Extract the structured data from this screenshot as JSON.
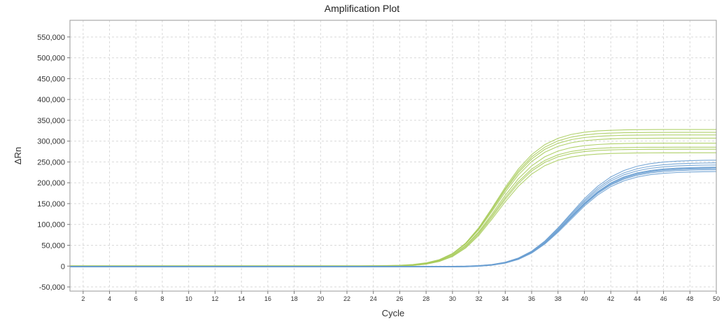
{
  "chart_data": {
    "type": "line",
    "title": "Amplification Plot",
    "xlabel": "Cycle",
    "ylabel": "ΔRn",
    "xlim": [
      1,
      50
    ],
    "ylim": [
      -60000,
      590000
    ],
    "x_ticks": [
      2,
      4,
      6,
      8,
      10,
      12,
      14,
      16,
      18,
      20,
      22,
      24,
      26,
      28,
      30,
      32,
      34,
      36,
      38,
      40,
      42,
      44,
      46,
      48,
      50
    ],
    "y_ticks": [
      -50000,
      0,
      50000,
      100000,
      150000,
      200000,
      250000,
      300000,
      350000,
      400000,
      450000,
      500000,
      550000
    ],
    "y_tick_labels": [
      "-50,000",
      "0",
      "50,000",
      "100,000",
      "150,000",
      "200,000",
      "250,000",
      "300,000",
      "350,000",
      "400,000",
      "450,000",
      "500,000",
      "550,000"
    ],
    "grid": true,
    "colors": {
      "green": "#a9cc5c",
      "blue": "#6a9fd2",
      "grid": "#d9d9d9",
      "frame": "#999999"
    },
    "x": [
      1,
      2,
      3,
      4,
      5,
      6,
      7,
      8,
      9,
      10,
      11,
      12,
      13,
      14,
      15,
      16,
      17,
      18,
      19,
      20,
      21,
      22,
      23,
      24,
      25,
      26,
      27,
      28,
      29,
      30,
      31,
      32,
      33,
      34,
      35,
      36,
      37,
      38,
      39,
      40,
      41,
      42,
      43,
      44,
      45,
      46,
      47,
      48,
      49,
      50
    ],
    "series": [
      {
        "group": "green",
        "values": [
          -1000,
          -1000,
          -1000,
          -1000,
          -1000,
          -1000,
          -1000,
          -1000,
          -1000,
          -1000,
          -1000,
          -1000,
          -1000,
          -1000,
          -1000,
          -1000,
          -1000,
          -1000,
          -1000,
          -1000,
          -1000,
          -1000,
          -1000,
          -900,
          -600,
          0,
          1500,
          4500,
          11000,
          23000,
          43500,
          73800,
          113000,
          154500,
          191700,
          220800,
          241200,
          254100,
          261900,
          266400,
          268900,
          270300,
          271100,
          271500,
          271800,
          271900,
          271900,
          272000,
          272000,
          272000
        ]
      },
      {
        "group": "green",
        "values": [
          -500,
          -500,
          -500,
          -500,
          -500,
          -500,
          -500,
          -500,
          -500,
          -500,
          -500,
          -500,
          -500,
          -500,
          -500,
          -500,
          -500,
          -500,
          -500,
          -500,
          -500,
          -500,
          -500,
          -400,
          -100,
          600,
          2100,
          5200,
          11900,
          24500,
          45700,
          77100,
          117500,
          160300,
          198400,
          228200,
          249000,
          262300,
          270300,
          274900,
          277500,
          278900,
          279700,
          280200,
          280400,
          280500,
          280600,
          280600,
          280600,
          280600
        ]
      },
      {
        "group": "green",
        "values": [
          0,
          0,
          0,
          0,
          0,
          0,
          0,
          0,
          0,
          0,
          0,
          0,
          0,
          0,
          0,
          0,
          0,
          0,
          0,
          0,
          0,
          0,
          0,
          100,
          400,
          1100,
          2700,
          6000,
          13000,
          26100,
          48100,
          80300,
          121200,
          164500,
          202900,
          232800,
          253800,
          267200,
          275200,
          279800,
          282400,
          283900,
          284600,
          285100,
          285300,
          285400,
          285500,
          285500,
          285500,
          285500
        ]
      },
      {
        "group": "green",
        "values": [
          0,
          0,
          0,
          0,
          0,
          0,
          0,
          0,
          0,
          0,
          0,
          0,
          0,
          0,
          0,
          0,
          0,
          0,
          0,
          0,
          0,
          0,
          0,
          100,
          400,
          1100,
          2800,
          6200,
          13400,
          27000,
          49700,
          83000,
          125300,
          170100,
          209800,
          240700,
          262400,
          276100,
          284400,
          289200,
          291900,
          293400,
          294200,
          294700,
          294900,
          295000,
          295100,
          295100,
          295100,
          295100
        ]
      },
      {
        "group": "green",
        "values": [
          500,
          500,
          500,
          500,
          500,
          500,
          500,
          500,
          500,
          500,
          500,
          500,
          500,
          500,
          500,
          500,
          500,
          500,
          500,
          500,
          500,
          500,
          500,
          600,
          900,
          1700,
          3500,
          7200,
          14800,
          29200,
          53100,
          87800,
          131600,
          177900,
          218900,
          250900,
          273400,
          287500,
          296100,
          301100,
          303800,
          305400,
          306300,
          306700,
          306900,
          307100,
          307100,
          307100,
          307100,
          307100
        ]
      },
      {
        "group": "green",
        "values": [
          1000,
          1000,
          1000,
          1000,
          1000,
          1000,
          1000,
          1000,
          1000,
          1000,
          1000,
          1000,
          1000,
          1000,
          1000,
          1000,
          1000,
          1000,
          1000,
          1000,
          1000,
          1000,
          1000,
          1100,
          1400,
          2200,
          4000,
          7800,
          15500,
          30200,
          54700,
          90200,
          135000,
          182500,
          224500,
          257300,
          280300,
          294800,
          303600,
          308700,
          311500,
          313100,
          314000,
          314400,
          314700,
          314800,
          314900,
          314900,
          314900,
          314900
        ]
      },
      {
        "group": "green",
        "values": [
          0,
          0,
          0,
          0,
          0,
          0,
          0,
          0,
          0,
          0,
          0,
          0,
          0,
          0,
          0,
          0,
          0,
          0,
          0,
          0,
          0,
          0,
          0,
          100,
          400,
          1200,
          3000,
          6800,
          14600,
          29500,
          54400,
          90800,
          136800,
          185500,
          228500,
          262100,
          285700,
          300600,
          309600,
          314800,
          317700,
          319300,
          320200,
          320600,
          320900,
          321000,
          321100,
          321100,
          321100,
          321100
        ]
      },
      {
        "group": "green",
        "values": [
          -500,
          -500,
          -500,
          -500,
          -500,
          -500,
          -500,
          -500,
          -500,
          -500,
          -500,
          -500,
          -500,
          -500,
          -500,
          -500,
          -500,
          -500,
          -500,
          -500,
          -500,
          -500,
          -500,
          -400,
          0,
          800,
          2600,
          6500,
          14500,
          29800,
          55300,
          92500,
          139500,
          189200,
          233200,
          267600,
          291700,
          306900,
          316100,
          321500,
          324400,
          326000,
          326900,
          327400,
          327600,
          327800,
          327800,
          327800,
          327800,
          327800
        ]
      },
      {
        "group": "blue",
        "values": [
          -2000,
          -2000,
          -2000,
          -2000,
          -2000,
          -2000,
          -2000,
          -2000,
          -2000,
          -2000,
          -2000,
          -2000,
          -2000,
          -2000,
          -2000,
          -2000,
          -2000,
          -2000,
          -2000,
          -2000,
          -2000,
          -2000,
          -2000,
          -2000,
          -2000,
          -2000,
          -2000,
          -2000,
          -2000,
          -1900,
          -1500,
          -400,
          2200,
          7400,
          16900,
          32500,
          55400,
          84700,
          117700,
          150000,
          177600,
          198600,
          213100,
          222500,
          228300,
          231800,
          233800,
          235000,
          235700,
          236100
        ]
      },
      {
        "group": "blue",
        "values": [
          -1500,
          -1500,
          -1500,
          -1500,
          -1500,
          -1500,
          -1500,
          -1500,
          -1500,
          -1500,
          -1500,
          -1500,
          -1500,
          -1500,
          -1500,
          -1500,
          -1500,
          -1500,
          -1500,
          -1500,
          -1500,
          -1500,
          -1500,
          -1500,
          -1500,
          -1500,
          -1500,
          -1500,
          -1500,
          -1400,
          -1000,
          100,
          2800,
          8100,
          17900,
          33900,
          57400,
          87400,
          121200,
          154400,
          182700,
          204300,
          219100,
          228800,
          234800,
          238300,
          240400,
          241600,
          242300,
          242700
        ]
      },
      {
        "group": "blue",
        "values": [
          -1000,
          -1000,
          -1000,
          -1000,
          -1000,
          -1000,
          -1000,
          -1000,
          -1000,
          -1000,
          -1000,
          -1000,
          -1000,
          -1000,
          -1000,
          -1000,
          -1000,
          -1000,
          -1000,
          -1000,
          -1000,
          -1000,
          -1000,
          -1000,
          -1000,
          -1000,
          -1000,
          -1000,
          -1000,
          -900,
          -500,
          600,
          3100,
          8200,
          17500,
          32700,
          55200,
          84000,
          116600,
          148500,
          175800,
          196600,
          211000,
          220400,
          226200,
          229700,
          231700,
          232900,
          233500,
          233900
        ]
      },
      {
        "group": "blue",
        "values": [
          -1000,
          -1000,
          -1000,
          -1000,
          -1000,
          -1000,
          -1000,
          -1000,
          -1000,
          -1000,
          -1000,
          -1000,
          -1000,
          -1000,
          -1000,
          -1000,
          -1000,
          -1000,
          -1000,
          -1000,
          -1000,
          -1000,
          -1000,
          -1000,
          -1000,
          -1000,
          -1000,
          -1000,
          -1000,
          -900,
          -500,
          700,
          3500,
          9000,
          19200,
          35800,
          60300,
          91600,
          127100,
          161800,
          191400,
          214000,
          229600,
          239800,
          246000,
          249700,
          251900,
          253100,
          253900,
          254300
        ]
      },
      {
        "group": "blue",
        "values": [
          -500,
          -500,
          -500,
          -500,
          -500,
          -500,
          -500,
          -500,
          -500,
          -500,
          -500,
          -500,
          -500,
          -500,
          -500,
          -500,
          -500,
          -500,
          -500,
          -500,
          -500,
          -500,
          -500,
          -500,
          -500,
          -500,
          -500,
          -500,
          -500,
          -400,
          0,
          1200,
          4000,
          9400,
          19300,
          35500,
          59300,
          89700,
          124200,
          157900,
          186700,
          208700,
          223900,
          233800,
          239800,
          243400,
          245500,
          246700,
          247400,
          247800
        ]
      },
      {
        "group": "blue",
        "values": [
          -500,
          -500,
          -500,
          -500,
          -500,
          -500,
          -500,
          -500,
          -500,
          -500,
          -500,
          -500,
          -500,
          -500,
          -500,
          -500,
          -500,
          -500,
          -500,
          -500,
          -500,
          -500,
          -500,
          -500,
          -500,
          -500,
          -500,
          -500,
          -500,
          -400,
          0,
          1100,
          3600,
          8600,
          17800,
          32900,
          55200,
          83600,
          115800,
          147200,
          174100,
          194600,
          208800,
          218100,
          223700,
          227100,
          229100,
          230300,
          230900,
          231300
        ]
      },
      {
        "group": "blue",
        "values": [
          -1500,
          -1500,
          -1500,
          -1500,
          -1500,
          -1500,
          -1500,
          -1500,
          -1500,
          -1500,
          -1500,
          -1500,
          -1500,
          -1500,
          -1500,
          -1500,
          -1500,
          -1500,
          -1500,
          -1500,
          -1500,
          -1500,
          -1500,
          -1500,
          -1500,
          -1500,
          -1500,
          -1500,
          -1500,
          -1400,
          -1000,
          100,
          2700,
          7800,
          17300,
          32900,
          55900,
          85200,
          118400,
          150900,
          178600,
          199800,
          214400,
          223900,
          229700,
          233200,
          235300,
          236500,
          237200,
          237600
        ]
      },
      {
        "group": "blue",
        "values": [
          -2000,
          -2000,
          -2000,
          -2000,
          -2000,
          -2000,
          -2000,
          -2000,
          -2000,
          -2000,
          -2000,
          -2000,
          -2000,
          -2000,
          -2000,
          -2000,
          -2000,
          -2000,
          -2000,
          -2000,
          -2000,
          -2000,
          -2000,
          -2000,
          -2000,
          -2000,
          -2000,
          -2000,
          -2000,
          -1900,
          -1500,
          -400,
          2100,
          7000,
          16100,
          31100,
          53100,
          81100,
          112900,
          144000,
          170500,
          190700,
          204700,
          213800,
          219400,
          222700,
          224700,
          225800,
          226500,
          226800
        ]
      }
    ]
  }
}
